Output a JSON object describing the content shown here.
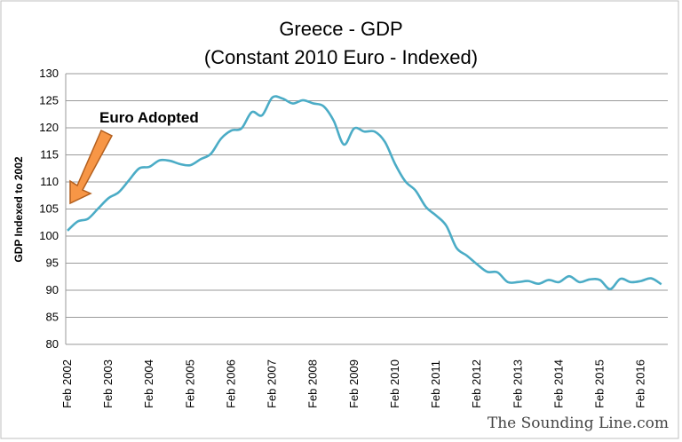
{
  "chart_data": {
    "type": "line",
    "title": [
      "Greece -  GDP",
      "(Constant 2010 Euro - Indexed)"
    ],
    "xlabel": "",
    "ylabel": "GDP Indexed to 2002",
    "ylim": [
      80,
      130
    ],
    "yticks": [
      "80",
      "85",
      "90",
      "95",
      "100",
      "105",
      "110",
      "115",
      "120",
      "125",
      "130"
    ],
    "xticks": [
      "Feb 2002",
      "Feb 2003",
      "Feb 2004",
      "Feb 2005",
      "Feb 2006",
      "Feb 2007",
      "Feb 2008",
      "Feb 2009",
      "Feb 2010",
      "Feb 2011",
      "Feb 2012",
      "Feb 2013",
      "Feb 2014",
      "Feb 2015",
      "Feb 2016"
    ],
    "grid": true,
    "line_color": "#4BACC6",
    "annotation": {
      "text": "Euro Adopted",
      "arrow_color": "#F79646",
      "points_to": "Feb 2002"
    },
    "x": [
      "Feb 2002",
      "May 2002",
      "Aug 2002",
      "Nov 2002",
      "Feb 2003",
      "May 2003",
      "Aug 2003",
      "Nov 2003",
      "Feb 2004",
      "May 2004",
      "Aug 2004",
      "Nov 2004",
      "Feb 2005",
      "May 2005",
      "Aug 2005",
      "Nov 2005",
      "Feb 2006",
      "May 2006",
      "Aug 2006",
      "Nov 2006",
      "Feb 2007",
      "May 2007",
      "Aug 2007",
      "Nov 2007",
      "Feb 2008",
      "May 2008",
      "Aug 2008",
      "Nov 2008",
      "Feb 2009",
      "May 2009",
      "Aug 2009",
      "Nov 2009",
      "Feb 2010",
      "May 2010",
      "Aug 2010",
      "Nov 2010",
      "Feb 2011",
      "May 2011",
      "Aug 2011",
      "Nov 2011",
      "Feb 2012",
      "May 2012",
      "Aug 2012",
      "Nov 2012",
      "Feb 2013",
      "May 2013",
      "Aug 2013",
      "Nov 2013",
      "Feb 2014",
      "May 2014",
      "Aug 2014",
      "Nov 2014",
      "Feb 2015",
      "May 2015",
      "Aug 2015",
      "Nov 2015",
      "Feb 2016",
      "May 2016",
      "Aug 2016"
    ],
    "series": [
      {
        "values": [
          101.0,
          102.7,
          103.2,
          105.1,
          107.0,
          108.1,
          110.3,
          112.5,
          112.8,
          114.0,
          113.9,
          113.3,
          113.1,
          114.2,
          115.2,
          118.0,
          119.5,
          119.9,
          122.9,
          122.3,
          125.6,
          125.4,
          124.5,
          125.1,
          124.5,
          124.0,
          121.3,
          116.9,
          119.9,
          119.3,
          119.3,
          117.4,
          113.3,
          110.1,
          108.4,
          105.4,
          103.8,
          101.9,
          97.8,
          96.4,
          94.8,
          93.4,
          93.3,
          91.5,
          91.5,
          91.7,
          91.2,
          91.9,
          91.5,
          92.6,
          91.5,
          92.0,
          91.9,
          90.2,
          92.1,
          91.5,
          91.7,
          92.2,
          91.1
        ]
      }
    ]
  },
  "watermark": "The Sounding Line.com"
}
